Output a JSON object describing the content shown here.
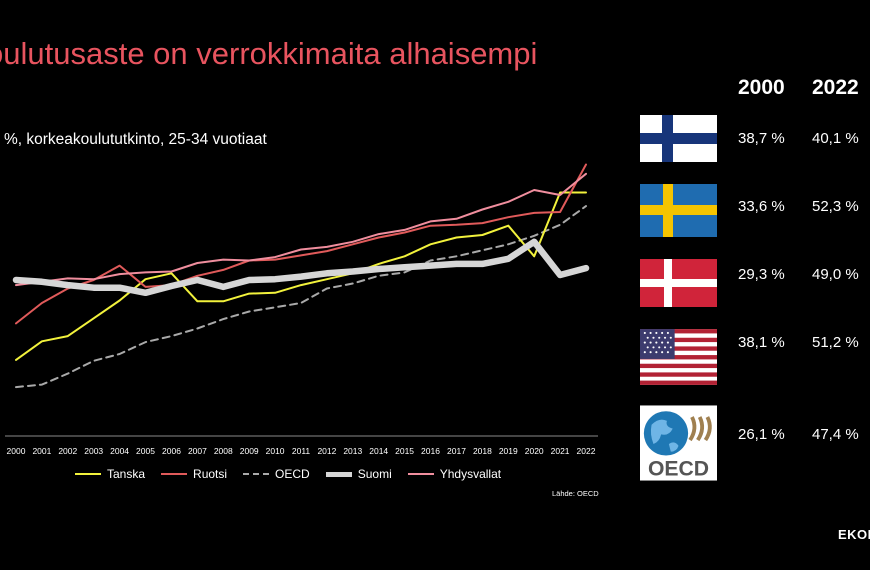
{
  "title": "oulutusaste on verrokkimaita alhaisempi",
  "subtitle": "%, korkeakoulututkinto, 25-34 vuotiaat",
  "source": "Lähde: OECD",
  "brand": "EKON",
  "table": {
    "headers": [
      "2000",
      "2022"
    ],
    "rows": [
      {
        "flag": "finland-flag-icon",
        "v2000": "38,7 %",
        "v2022": "40,1 %"
      },
      {
        "flag": "sweden-flag-icon",
        "v2000": "33,6 %",
        "v2022": "52,3 %"
      },
      {
        "flag": "denmark-flag-icon",
        "v2000": "29,3 %",
        "v2022": "49,0 %"
      },
      {
        "flag": "usa-flag-icon",
        "v2000": "38,1 %",
        "v2022": "51,2 %"
      },
      {
        "flag": "oecd-logo-icon",
        "v2000": "26,1 %",
        "v2022": "47,4 %",
        "logo_text": "OECD"
      }
    ]
  },
  "colors": {
    "title": "#e8545f",
    "Tanska": "#f2f23c",
    "Ruotsi": "#e05a5a",
    "OECD": "#a9a9a9",
    "Suomi": "#d6d6d6",
    "Yhdysvallat": "#f08e9e"
  },
  "chart_data": {
    "type": "line",
    "x": [
      2000,
      2001,
      2002,
      2003,
      2004,
      2005,
      2006,
      2007,
      2008,
      2009,
      2010,
      2011,
      2012,
      2013,
      2014,
      2015,
      2016,
      2017,
      2018,
      2019,
      2020,
      2021,
      2022
    ],
    "ylim": [
      24,
      54
    ],
    "grid": false,
    "legend_position": "bottom",
    "series": [
      {
        "name": "Tanska",
        "style": "solid",
        "values": [
          29.3,
          31.5,
          32.1,
          34.2,
          36.3,
          38.8,
          39.5,
          36.2,
          36.2,
          37.1,
          37.2,
          38.1,
          38.8,
          39.5,
          40.6,
          41.5,
          42.9,
          43.7,
          44.0,
          45.1,
          41.5,
          49.0,
          49.0
        ]
      },
      {
        "name": "Ruotsi",
        "style": "solid",
        "values": [
          33.6,
          36.0,
          37.7,
          38.7,
          40.4,
          37.9,
          38.1,
          39.2,
          39.9,
          41.0,
          41.1,
          41.6,
          42.1,
          42.9,
          43.7,
          44.3,
          45.1,
          45.2,
          45.4,
          46.1,
          46.6,
          46.7,
          52.3
        ]
      },
      {
        "name": "OECD",
        "style": "dashed",
        "values": [
          26.1,
          26.4,
          27.7,
          29.2,
          30.0,
          31.4,
          32.1,
          33.0,
          34.1,
          35.0,
          35.5,
          36.0,
          37.7,
          38.3,
          39.2,
          39.6,
          41.0,
          41.5,
          42.2,
          42.9,
          43.9,
          45.2,
          47.4
        ]
      },
      {
        "name": "Suomi",
        "style": "thick",
        "values": [
          38.7,
          38.5,
          38.1,
          37.8,
          37.8,
          37.2,
          38.0,
          38.7,
          37.9,
          38.7,
          38.8,
          39.1,
          39.5,
          39.7,
          40.0,
          40.2,
          40.4,
          40.6,
          40.6,
          41.2,
          43.2,
          39.3,
          40.1
        ]
      },
      {
        "name": "Yhdysvallat",
        "style": "solid",
        "values": [
          38.1,
          38.5,
          38.9,
          38.8,
          39.4,
          39.6,
          39.7,
          40.7,
          41.1,
          41.0,
          41.4,
          42.3,
          42.6,
          43.2,
          44.1,
          44.6,
          45.6,
          45.9,
          47.0,
          47.9,
          49.3,
          48.7,
          51.2
        ]
      }
    ]
  }
}
